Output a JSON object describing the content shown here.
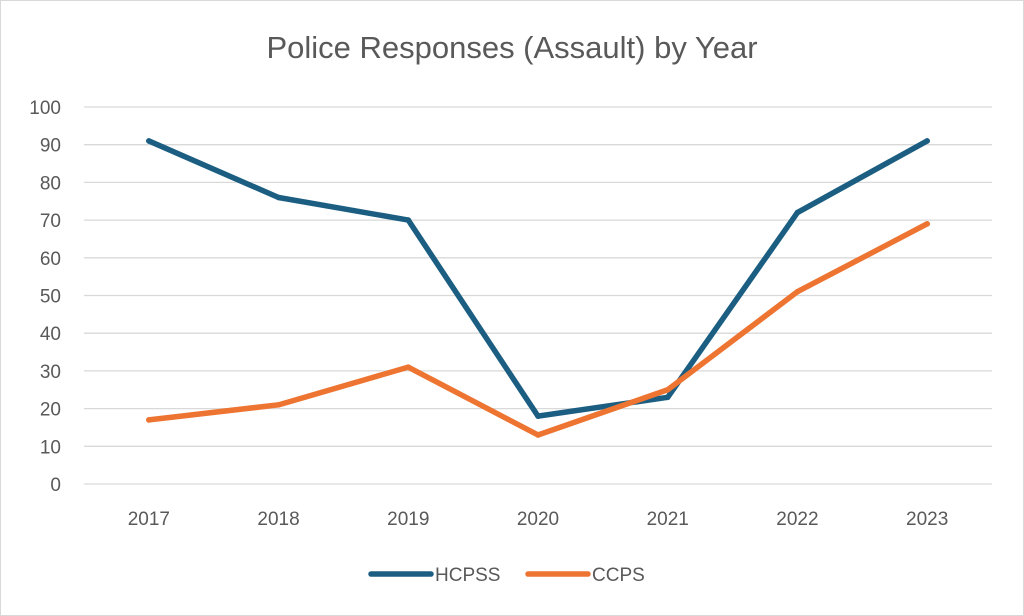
{
  "chart_data": {
    "type": "line",
    "title": "Police Responses (Assault) by Year",
    "xlabel": "",
    "ylabel": "",
    "categories": [
      "2017",
      "2018",
      "2019",
      "2020",
      "2021",
      "2022",
      "2023"
    ],
    "ylim": [
      0,
      100
    ],
    "yticks": [
      0,
      10,
      20,
      30,
      40,
      50,
      60,
      70,
      80,
      90,
      100
    ],
    "grid": true,
    "legend_position": "bottom",
    "series": [
      {
        "name": "HCPSS",
        "color": "#1b5e82",
        "values": [
          91,
          76,
          70,
          18,
          23,
          72,
          91
        ]
      },
      {
        "name": "CCPS",
        "color": "#ed7431",
        "values": [
          17,
          21,
          31,
          13,
          25,
          51,
          69
        ]
      }
    ]
  }
}
